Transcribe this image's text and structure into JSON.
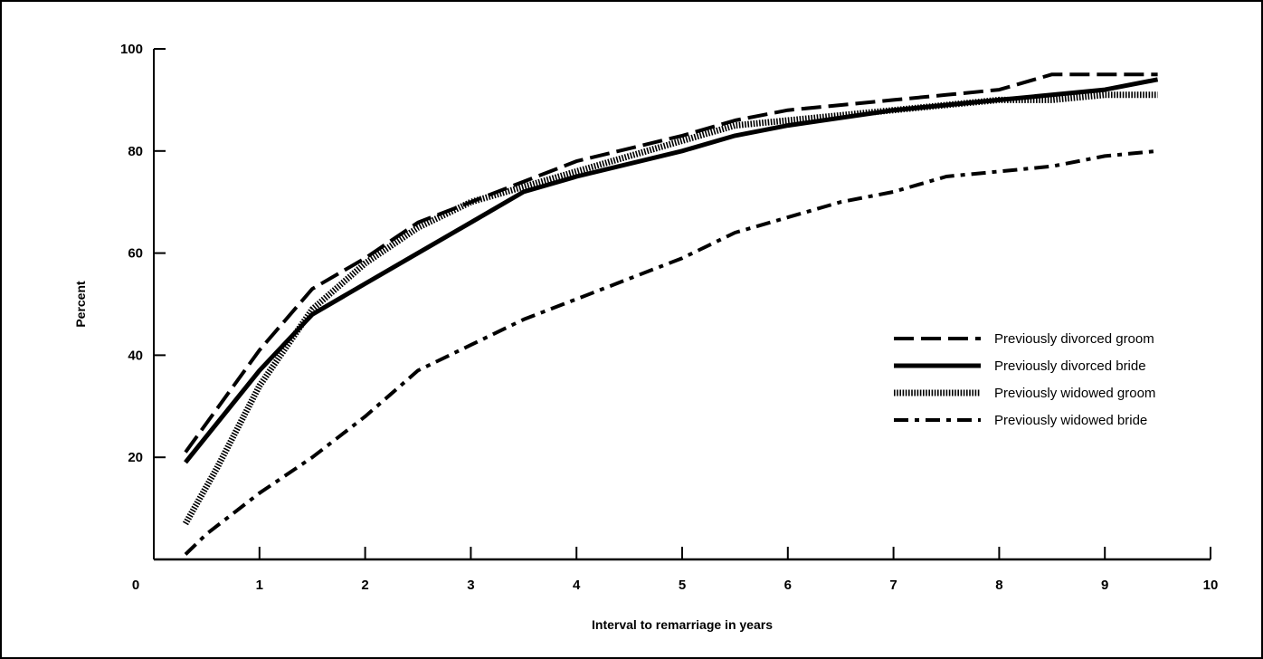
{
  "chart_data": {
    "type": "line",
    "title": "",
    "xlabel": "Interval to remarriage in years",
    "ylabel": "Percent",
    "xlim": [
      0,
      10
    ],
    "ylim": [
      0,
      100
    ],
    "x_ticks": [
      0,
      1,
      2,
      3,
      4,
      5,
      6,
      7,
      8,
      9,
      10
    ],
    "y_ticks": [
      20,
      40,
      60,
      80,
      100
    ],
    "grid": false,
    "legend_position": "right",
    "series": [
      {
        "name": "Previously divorced groom",
        "style": "dashed",
        "color": "#000000",
        "points": [
          [
            0.3,
            21
          ],
          [
            1,
            41
          ],
          [
            1.5,
            53
          ],
          [
            2,
            59
          ],
          [
            2.5,
            66
          ],
          [
            3,
            70
          ],
          [
            3.5,
            74
          ],
          [
            4,
            78
          ],
          [
            5,
            83
          ],
          [
            5.5,
            86
          ],
          [
            6,
            88
          ],
          [
            7,
            90
          ],
          [
            7.5,
            91
          ],
          [
            8,
            92
          ],
          [
            8.5,
            95
          ],
          [
            9,
            95
          ],
          [
            9.5,
            95
          ]
        ]
      },
      {
        "name": "Previously divorced bride",
        "style": "solid",
        "color": "#000000",
        "points": [
          [
            0.3,
            19
          ],
          [
            1,
            37
          ],
          [
            1.5,
            48
          ],
          [
            2,
            54
          ],
          [
            2.5,
            60
          ],
          [
            3,
            66
          ],
          [
            3.5,
            72
          ],
          [
            4,
            75
          ],
          [
            5,
            80
          ],
          [
            5.5,
            83
          ],
          [
            6,
            85
          ],
          [
            7,
            88
          ],
          [
            7.5,
            89
          ],
          [
            8,
            90
          ],
          [
            8.5,
            91
          ],
          [
            9,
            92
          ],
          [
            9.5,
            94
          ]
        ]
      },
      {
        "name": "Previously widowed groom",
        "style": "dotted",
        "color": "#000000",
        "points": [
          [
            0.3,
            7
          ],
          [
            0.6,
            18
          ],
          [
            1,
            34
          ],
          [
            1.5,
            49
          ],
          [
            2,
            58
          ],
          [
            2.5,
            65
          ],
          [
            3,
            70
          ],
          [
            3.5,
            73
          ],
          [
            4,
            76
          ],
          [
            5,
            82
          ],
          [
            5.5,
            85
          ],
          [
            6,
            86
          ],
          [
            7,
            88
          ],
          [
            7.5,
            89
          ],
          [
            8,
            90
          ],
          [
            8.5,
            90
          ],
          [
            9,
            91
          ],
          [
            9.5,
            91
          ]
        ]
      },
      {
        "name": "Previously widowed bride",
        "style": "dash-dot",
        "color": "#000000",
        "points": [
          [
            0.3,
            1
          ],
          [
            0.5,
            5
          ],
          [
            1,
            13
          ],
          [
            1.5,
            20
          ],
          [
            2,
            28
          ],
          [
            2.5,
            37
          ],
          [
            3,
            42
          ],
          [
            3.5,
            47
          ],
          [
            4,
            51
          ],
          [
            4.5,
            55
          ],
          [
            5,
            59
          ],
          [
            5.5,
            64
          ],
          [
            6,
            67
          ],
          [
            6.5,
            70
          ],
          [
            7,
            72
          ],
          [
            7.5,
            75
          ],
          [
            8,
            76
          ],
          [
            8.5,
            77
          ],
          [
            9,
            79
          ],
          [
            9.5,
            80
          ]
        ]
      }
    ]
  }
}
